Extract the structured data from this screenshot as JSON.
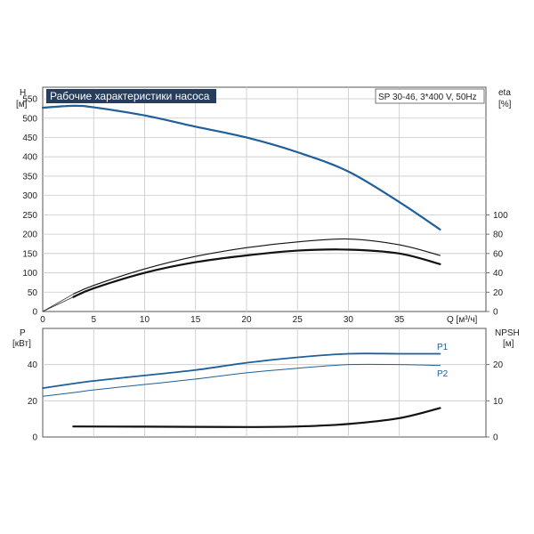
{
  "chart_data": [
    {
      "type": "line",
      "title": "Рабочие характеристики насоса",
      "subtitle": "SP 30-46, 3*400 V, 50Hz",
      "x_unit_label": "Q [м³/ч]",
      "y_left": {
        "label": "H",
        "unit": "[м]",
        "lim": [
          0,
          580
        ],
        "ticks": [
          0,
          50,
          100,
          150,
          200,
          250,
          300,
          350,
          400,
          450,
          500,
          550
        ]
      },
      "y_right": {
        "label": "eta",
        "unit": "[%]",
        "lim": [
          0,
          232
        ],
        "ticks": [
          0,
          20,
          40,
          60,
          80,
          100
        ]
      },
      "xlim": [
        0,
        43.5
      ],
      "x_ticks": [
        0,
        5,
        10,
        15,
        20,
        25,
        30,
        35
      ],
      "grid": true,
      "series": [
        {
          "axis": "left",
          "color": "#1f5f9a",
          "x": [
            0,
            3,
            5,
            10,
            15,
            20,
            25,
            30,
            35,
            39
          ],
          "y": [
            527,
            532,
            528,
            507,
            478,
            450,
            412,
            362,
            283,
            212
          ]
        },
        {
          "axis": "right",
          "color": "#111111",
          "x": [
            3,
            5,
            10,
            15,
            20,
            25,
            30,
            35,
            39
          ],
          "y": [
            18,
            27,
            44,
            57,
            66,
            72,
            75,
            69,
            58
          ]
        },
        {
          "axis": "right",
          "color": "#111111",
          "x": [
            3,
            5,
            10,
            15,
            20,
            25,
            30,
            35,
            39
          ],
          "y": [
            15,
            24,
            40,
            51,
            58,
            63,
            64,
            60,
            49
          ]
        }
      ]
    },
    {
      "type": "line",
      "x_unit_label": "",
      "y_left": {
        "label": "P",
        "unit": "[кВт]",
        "lim": [
          0,
          60
        ],
        "ticks": [
          0,
          20,
          40
        ]
      },
      "y_right": {
        "label": "NPSH",
        "unit": "[м]",
        "lim": [
          0,
          30
        ],
        "ticks": [
          0,
          10,
          20
        ]
      },
      "xlim": [
        0,
        43.5
      ],
      "x_ticks": [],
      "grid": true,
      "series": [
        {
          "name": "P1",
          "axis": "left",
          "color": "#1f5f9a",
          "x": [
            0,
            3,
            5,
            10,
            15,
            20,
            25,
            30,
            35,
            39
          ],
          "y": [
            27,
            29.5,
            31,
            34,
            37,
            41,
            44,
            46,
            46,
            46
          ]
        },
        {
          "name": "P2",
          "axis": "left",
          "color": "#1f5f9a",
          "x": [
            0,
            3,
            5,
            10,
            15,
            20,
            25,
            30,
            35,
            39
          ],
          "y": [
            22.5,
            24.5,
            26,
            29,
            32,
            35.5,
            38,
            40,
            40,
            39.5
          ]
        },
        {
          "axis": "right",
          "color": "#111111",
          "x": [
            3,
            10,
            20,
            25,
            30,
            35,
            39
          ],
          "y": [
            2.9,
            2.85,
            2.75,
            2.9,
            3.6,
            5.2,
            8
          ]
        }
      ]
    }
  ]
}
